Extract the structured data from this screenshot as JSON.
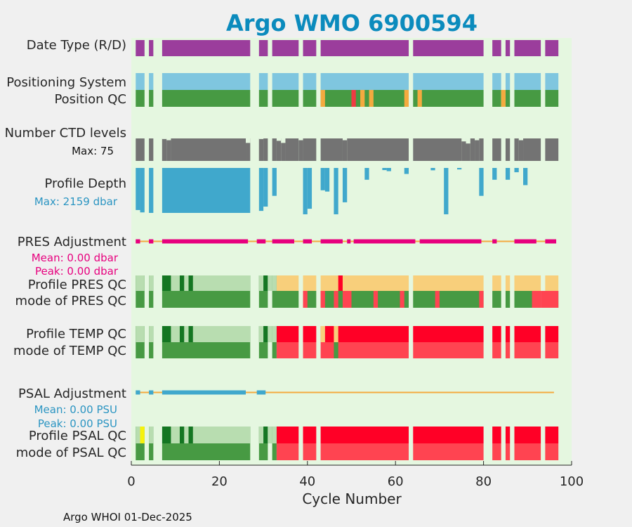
{
  "title": "Argo WMO 6900594",
  "footer": "Argo WHOI 01-Dec-2025",
  "colors": {
    "title": "#0b8bbd",
    "background": "#e5f7e0",
    "page": "#f0f0f0",
    "date_type": "#9b3d9c",
    "positioning": "#7fc6df",
    "qc_good": "#479a43",
    "qc_orange": "#f4aa3f",
    "qc_red": "#f03a43",
    "ctd": "#737373",
    "depth": "#40a8cc",
    "pres_adj": "#e7007e",
    "adj_line": "#f4aa3f",
    "prof_A": "#b8ddb0",
    "prof_B": "#147622",
    "prof_C": "#f8cf7b",
    "prof_F": "#ff0026",
    "prof_yellow": "#f6f20c",
    "mode_red": "#ff4451",
    "psal_adj": "#40a8cc"
  },
  "chart_data": {
    "type": "timeline",
    "xlabel": "Cycle Number",
    "xlim": [
      0,
      100
    ],
    "xticks": [
      0,
      20,
      40,
      60,
      80,
      100
    ],
    "cycles": {
      "segments": [
        [
          1,
          3
        ],
        [
          4,
          5
        ],
        [
          7,
          27
        ],
        [
          29,
          31
        ],
        [
          32,
          38
        ],
        [
          39,
          42
        ],
        [
          43,
          63
        ],
        [
          64,
          80
        ],
        [
          82,
          84
        ],
        [
          85,
          86
        ],
        [
          87,
          93
        ],
        [
          94,
          97
        ]
      ]
    },
    "rows": [
      {
        "name": "Date Type (R/D)"
      },
      {
        "name": "Positioning System"
      },
      {
        "name": "Position QC"
      },
      {
        "name": "Number CTD levels",
        "note": "Max: 75"
      },
      {
        "name": "Profile Depth",
        "note": "Max: 2159 dbar"
      },
      {
        "name": "PRES Adjustment",
        "notes": [
          "Mean: 0.00 dbar",
          "Peak: 0.00 dbar"
        ]
      },
      {
        "name": "Profile PRES QC"
      },
      {
        "name": "mode of PRES QC"
      },
      {
        "name": "Profile TEMP QC"
      },
      {
        "name": "mode of TEMP QC"
      },
      {
        "name": "PSAL Adjustment",
        "notes": [
          "Mean: 0.00 PSU",
          "Peak: 0.00 PSU"
        ]
      },
      {
        "name": "Profile PSAL QC"
      },
      {
        "name": "mode of PSAL QC"
      }
    ],
    "position_qc_flags": {
      "orange": [
        43,
        52,
        54,
        62,
        65,
        84
      ],
      "red": [
        50
      ]
    },
    "ctd_levels_max": 75,
    "ctd_levels": {
      "short": [
        [
          7,
          8,
          73
        ],
        [
          8,
          9,
          69
        ],
        [
          26,
          27,
          60
        ],
        [
          29,
          30,
          73
        ],
        [
          33,
          34,
          67
        ],
        [
          34,
          35,
          60
        ],
        [
          38,
          39,
          69
        ],
        [
          48,
          49,
          69
        ],
        [
          75,
          76,
          65
        ],
        [
          76,
          77,
          58
        ],
        [
          78,
          79,
          69
        ],
        [
          88,
          89,
          69
        ]
      ]
    },
    "profile_depth_max_dbar": 2159,
    "profile_depth": {
      "full": [
        [
          4,
          5
        ],
        [
          7,
          27
        ]
      ],
      "bars": [
        [
          1,
          2,
          1960
        ],
        [
          2,
          3,
          2070
        ],
        [
          29,
          30,
          2000
        ],
        [
          30,
          31,
          1800
        ],
        [
          32,
          33,
          1300
        ],
        [
          39,
          40,
          2159
        ],
        [
          40,
          41,
          1900
        ],
        [
          43,
          44,
          1040
        ],
        [
          44,
          45,
          1100
        ],
        [
          46,
          47,
          2159
        ],
        [
          48,
          49,
          1600
        ],
        [
          53,
          54,
          550
        ],
        [
          57,
          58,
          100
        ],
        [
          58,
          59,
          150
        ],
        [
          62,
          63,
          280
        ],
        [
          68,
          69,
          110
        ],
        [
          71,
          72,
          2159
        ],
        [
          74,
          75,
          70
        ],
        [
          79,
          80,
          1300
        ],
        [
          82,
          83,
          550
        ],
        [
          85,
          86,
          550
        ],
        [
          87,
          88,
          200
        ],
        [
          89,
          90,
          800
        ]
      ]
    },
    "pres_adjustment": {
      "marks": [
        [
          1,
          2
        ],
        [
          4,
          5
        ],
        [
          7,
          26.5
        ],
        [
          28.5,
          30.5
        ],
        [
          32,
          37
        ],
        [
          39,
          41
        ],
        [
          43,
          48
        ],
        [
          49,
          49.8
        ],
        [
          50.5,
          64.5
        ],
        [
          65.5,
          79.5
        ],
        [
          82,
          83
        ],
        [
          87,
          92
        ],
        [
          94,
          96.5
        ]
      ],
      "line": [
        1,
        96
      ]
    },
    "pres_profile_qc": {
      "lighter": [
        [
          1,
          3
        ],
        [
          4,
          5
        ],
        [
          9,
          11
        ],
        [
          12,
          13
        ],
        [
          14,
          27
        ],
        [
          29,
          30
        ],
        [
          31,
          32
        ],
        [
          32,
          33
        ]
      ]
    },
    "pres_mode_red": [
      [
        39,
        40
      ],
      [
        43,
        44
      ],
      [
        46,
        47
      ],
      [
        48,
        50
      ],
      [
        55,
        56
      ],
      [
        61,
        62
      ],
      [
        69,
        70
      ],
      [
        79,
        80
      ],
      [
        91,
        93
      ],
      [
        93,
        97
      ]
    ],
    "pres_profile_f": [
      [
        47,
        48
      ]
    ],
    "temp_profile_f": {
      "orange": [
        [
          43,
          44
        ],
        [
          46,
          47
        ]
      ]
    },
    "temp_mode": {
      "good_extra": [
        [
          46,
          47
        ]
      ]
    },
    "psal_adjustment": {
      "marks": [
        [
          1,
          2
        ],
        [
          4,
          5
        ],
        [
          7,
          26
        ],
        [
          28.5,
          30.5
        ]
      ],
      "line": [
        1,
        96
      ]
    },
    "psal_profile": {
      "yellow": [
        [
          2,
          3
        ]
      ]
    }
  }
}
